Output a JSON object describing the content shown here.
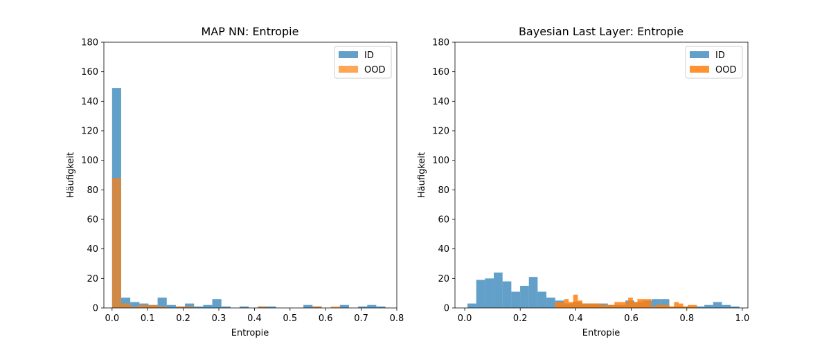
{
  "chart_data": [
    {
      "type": "bar",
      "title": "MAP NN: Entropie",
      "xlabel": "Entropie",
      "ylabel": "Häufigkeit",
      "xlim": [
        -0.023,
        0.8
      ],
      "ylim": [
        0,
        180
      ],
      "xticks": [
        0.0,
        0.1,
        0.2,
        0.3,
        0.4,
        0.5,
        0.6,
        0.7,
        0.8
      ],
      "xtick_labels": [
        "0.0",
        "0.1",
        "0.2",
        "0.3",
        "0.4",
        "0.5",
        "0.6",
        "0.7",
        "0.8"
      ],
      "yticks": [
        0,
        20,
        40,
        60,
        80,
        100,
        120,
        140,
        160,
        180
      ],
      "yticklabels": [
        "0",
        "20",
        "40",
        "60",
        "80",
        "100",
        "120",
        "140",
        "160",
        "180"
      ],
      "legend_position": "top-right",
      "series": [
        {
          "name": "ID",
          "color": "#1f77b4",
          "opacity": 0.7,
          "bin_start": 0.0,
          "bin_width": 0.0256,
          "counts": [
            149,
            7,
            4,
            3,
            2,
            7,
            2,
            1,
            3,
            1,
            2,
            6,
            1,
            0,
            1,
            0,
            1,
            1,
            0,
            0,
            0,
            2,
            1,
            0,
            0,
            2,
            0,
            1,
            2,
            1
          ]
        },
        {
          "name": "OOD",
          "color": "#ff7f0e",
          "opacity": 0.7,
          "bin_start": 0.0,
          "bin_width": 0.0256,
          "counts": [
            88,
            3,
            1,
            2,
            2,
            1,
            0,
            1,
            1,
            0,
            0,
            0,
            0,
            0,
            0,
            0,
            1,
            0,
            0,
            0,
            0,
            0,
            1,
            0,
            1,
            0,
            0,
            0,
            0,
            0
          ]
        }
      ]
    },
    {
      "type": "bar",
      "title": "Bayesian Last Layer: Entropie",
      "xlabel": "Entropie",
      "ylabel": "Häufigkeit",
      "xlim": [
        -0.035,
        1.02
      ],
      "ylim": [
        0,
        180
      ],
      "xticks": [
        0.0,
        0.2,
        0.4,
        0.6,
        0.8,
        1.0
      ],
      "xtick_labels": [
        "0.0",
        "0.2",
        "0.4",
        "0.6",
        "0.8",
        "1.0"
      ],
      "yticks": [
        0,
        20,
        40,
        60,
        80,
        100,
        120,
        140,
        160,
        180
      ],
      "yticklabels": [
        "0",
        "20",
        "40",
        "60",
        "80",
        "100",
        "120",
        "140",
        "160",
        "180"
      ],
      "legend_position": "top-right",
      "series": [
        {
          "name": "ID",
          "color": "#1f77b4",
          "opacity": 0.7,
          "bin_start": 0.01,
          "bin_width": 0.0316,
          "counts": [
            3,
            19,
            20,
            24,
            18,
            11,
            15,
            21,
            11,
            7,
            5,
            3,
            4,
            3,
            3,
            3,
            2,
            2,
            5,
            4,
            5,
            6,
            6,
            1,
            1,
            1,
            1,
            2,
            4,
            2,
            1
          ]
        },
        {
          "name": "OOD",
          "color": "#ff7f0e",
          "opacity": 0.85,
          "bin_start": 0.325,
          "bin_width": 0.0165,
          "counts": [
            4,
            4,
            6,
            4,
            9,
            5,
            3,
            3,
            3,
            3,
            2,
            2,
            2,
            4,
            4,
            4,
            7,
            4,
            6,
            6,
            6,
            1,
            2,
            2,
            2,
            1,
            4,
            3,
            1,
            2,
            2
          ]
        }
      ]
    }
  ]
}
